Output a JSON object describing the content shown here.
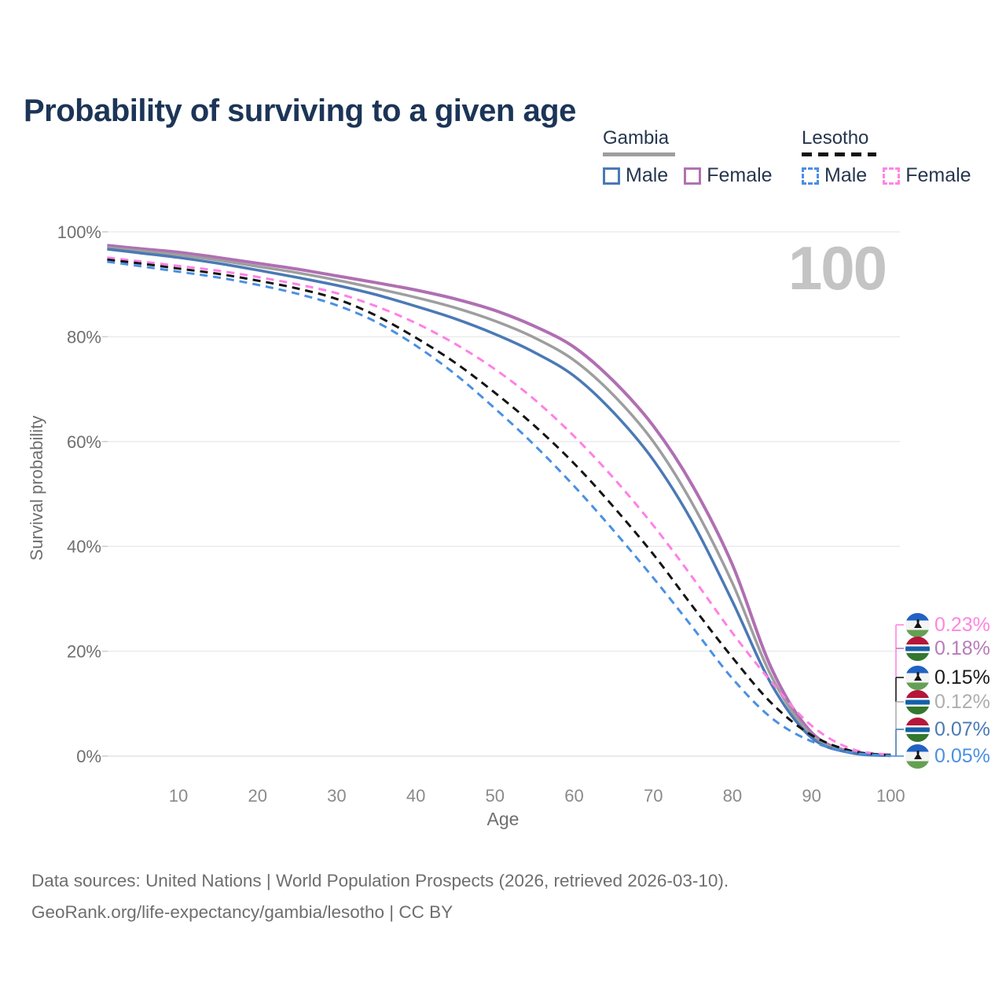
{
  "title": "Probability of surviving to a given age",
  "watermark_age": "100",
  "legend": {
    "groups": [
      {
        "country": "Gambia",
        "line_style": "solid",
        "underline_color": "#9e9e9e",
        "items": [
          {
            "label": "Male",
            "color": "#4b79b5"
          },
          {
            "label": "Female",
            "color": "#b272b2"
          }
        ]
      },
      {
        "country": "Lesotho",
        "line_style": "dashed",
        "underline_color": "#111111",
        "items": [
          {
            "label": "Male",
            "color": "#4a90e2"
          },
          {
            "label": "Female",
            "color": "#ff85e5"
          }
        ]
      }
    ]
  },
  "chart_data": {
    "type": "line",
    "title": "Probability of surviving to a given age",
    "xlabel": "Age",
    "ylabel": "Survival probability",
    "xlim": [
      1,
      100
    ],
    "ylim": [
      0,
      100
    ],
    "grid": "horizontal",
    "legend_position": "top-right",
    "x_ticks": [
      {
        "value": 10,
        "label": "10"
      },
      {
        "value": 20,
        "label": "20"
      },
      {
        "value": 30,
        "label": "30"
      },
      {
        "value": 40,
        "label": "40"
      },
      {
        "value": 50,
        "label": "50"
      },
      {
        "value": 60,
        "label": "60"
      },
      {
        "value": 70,
        "label": "70"
      },
      {
        "value": 80,
        "label": "80"
      },
      {
        "value": 90,
        "label": "90"
      },
      {
        "value": 100,
        "label": "100"
      }
    ],
    "y_ticks": [
      {
        "value": 0,
        "label": "0%"
      },
      {
        "value": 20,
        "label": "20%"
      },
      {
        "value": 40,
        "label": "40%"
      },
      {
        "value": 60,
        "label": "60%"
      },
      {
        "value": 80,
        "label": "80%"
      },
      {
        "value": 100,
        "label": "100%"
      }
    ],
    "ages": [
      1,
      5,
      10,
      15,
      20,
      25,
      30,
      35,
      40,
      45,
      50,
      55,
      60,
      65,
      70,
      75,
      80,
      85,
      90,
      95,
      100
    ],
    "series": [
      {
        "name": "Gambia Female",
        "country": "Gambia",
        "sex": "Female",
        "color": "#b06fb2",
        "line_style": "solid",
        "width": 4,
        "values": [
          97.4,
          96.8,
          96.1,
          95.1,
          94.0,
          92.9,
          91.6,
          90.3,
          88.9,
          87.2,
          85.0,
          82.0,
          78.0,
          71.5,
          63.0,
          51.5,
          36.5,
          16.5,
          4.5,
          0.8,
          0.18
        ]
      },
      {
        "name": "Gambia (both sexes)",
        "country": "Gambia",
        "sex": "Both",
        "color": "#9e9e9e",
        "line_style": "solid",
        "width": 3.5,
        "values": [
          97.0,
          96.4,
          95.6,
          94.6,
          93.4,
          92.2,
          90.8,
          89.2,
          87.5,
          85.5,
          83.0,
          79.8,
          75.5,
          68.8,
          60.0,
          48.0,
          33.0,
          15.0,
          4.0,
          0.7,
          0.12
        ]
      },
      {
        "name": "Gambia Male",
        "country": "Gambia",
        "sex": "Male",
        "color": "#4b79b5",
        "line_style": "solid",
        "width": 3.5,
        "values": [
          96.7,
          96.0,
          95.1,
          94.0,
          92.7,
          91.3,
          89.8,
          88.0,
          85.8,
          83.4,
          80.5,
          77.0,
          72.5,
          65.5,
          56.5,
          44.5,
          29.5,
          13.5,
          3.5,
          0.6,
          0.07
        ]
      },
      {
        "name": "Lesotho Female",
        "country": "Lesotho",
        "sex": "Female",
        "color": "#ff80e5",
        "line_style": "dashed",
        "width": 3,
        "values": [
          95.1,
          94.4,
          93.5,
          92.6,
          91.4,
          90.0,
          88.3,
          85.8,
          82.6,
          78.6,
          73.8,
          68.0,
          61.0,
          53.0,
          44.0,
          34.0,
          23.5,
          14.0,
          5.8,
          1.4,
          0.23
        ]
      },
      {
        "name": "Lesotho (both sexes)",
        "country": "Lesotho",
        "sex": "Both",
        "color": "#141414",
        "line_style": "dashed",
        "width": 3,
        "values": [
          94.7,
          94.0,
          93.0,
          92.0,
          90.7,
          89.2,
          87.2,
          84.0,
          79.8,
          75.0,
          69.3,
          63.0,
          55.8,
          47.5,
          38.5,
          28.5,
          18.8,
          10.0,
          4.0,
          1.0,
          0.15
        ]
      },
      {
        "name": "Lesotho Male",
        "country": "Lesotho",
        "sex": "Male",
        "color": "#4a90e2",
        "line_style": "dashed",
        "width": 3,
        "values": [
          94.3,
          93.5,
          92.4,
          91.3,
          89.9,
          88.2,
          86.0,
          82.8,
          78.3,
          72.8,
          66.3,
          59.3,
          51.5,
          43.0,
          34.0,
          24.5,
          14.8,
          7.2,
          2.8,
          0.7,
          0.05
        ]
      }
    ],
    "annotations": {
      "age_counter": "100",
      "end_values_at_age_100": [
        {
          "series": "Lesotho Female",
          "value": "0.23%"
        },
        {
          "series": "Gambia Female",
          "value": "0.18%"
        },
        {
          "series": "Lesotho (both sexes)",
          "value": "0.15%"
        },
        {
          "series": "Gambia (both sexes)",
          "value": "0.12%"
        },
        {
          "series": "Gambia Male",
          "value": "0.07%"
        },
        {
          "series": "Lesotho Male",
          "value": "0.05%"
        }
      ]
    }
  },
  "end_labels": [
    {
      "value": "0.23%",
      "flag": "lesotho",
      "color": "#ff85e0"
    },
    {
      "value": "0.18%",
      "flag": "gambia",
      "color": "#b87cba"
    },
    {
      "value": "0.15%",
      "flag": "lesotho",
      "color": "#1a1a1a"
    },
    {
      "value": "0.12%",
      "flag": "gambia",
      "color": "#aeaeae"
    },
    {
      "value": "0.07%",
      "flag": "gambia",
      "color": "#4a7ab5"
    },
    {
      "value": "0.05%",
      "flag": "lesotho",
      "color": "#4a90e2"
    }
  ],
  "footer": {
    "line1": "Data sources: United Nations | World Population Prospects (2026, retrieved 2026-03-10).",
    "line2": "GeoRank.org/life-expectancy/gambia/lesotho | CC BY"
  }
}
